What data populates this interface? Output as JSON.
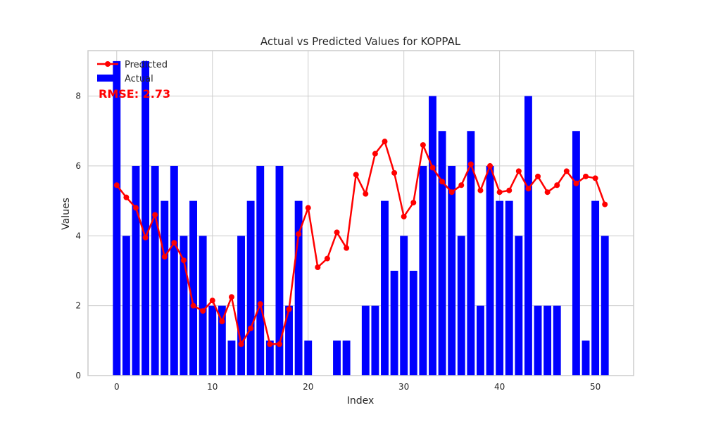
{
  "chart_data": {
    "type": "bar",
    "title": "Actual vs Predicted Values for KOPPAL",
    "xlabel": "Index",
    "ylabel": "Values",
    "xlim": [
      -3,
      54
    ],
    "ylim": [
      0,
      9.3
    ],
    "xticks": [
      0,
      10,
      20,
      30,
      40,
      50
    ],
    "yticks": [
      0,
      2,
      4,
      6,
      8
    ],
    "grid": true,
    "legend_position": "upper-left",
    "annotation": "RMSE: 2.73",
    "x": [
      0,
      1,
      2,
      3,
      4,
      5,
      6,
      7,
      8,
      9,
      10,
      11,
      12,
      13,
      14,
      15,
      16,
      17,
      18,
      19,
      20,
      21,
      22,
      23,
      24,
      25,
      26,
      27,
      28,
      29,
      30,
      31,
      32,
      33,
      34,
      35,
      36,
      37,
      38,
      39,
      40,
      41,
      42,
      43,
      44,
      45,
      46,
      47,
      48,
      49,
      50,
      51
    ],
    "series": [
      {
        "name": "Actual",
        "kind": "bar",
        "color": "#0000ff",
        "values": [
          9,
          4,
          6,
          9,
          6,
          5,
          6,
          4,
          5,
          4,
          2,
          2,
          1,
          4,
          5,
          6,
          1,
          6,
          2,
          5,
          1,
          0,
          0,
          1,
          1,
          0,
          2,
          2,
          5,
          3,
          4,
          3,
          6,
          8,
          7,
          6,
          4,
          7,
          2,
          6,
          5,
          5,
          4,
          8,
          2,
          2,
          2,
          0,
          7,
          1,
          5,
          4
        ]
      },
      {
        "name": "Predicted",
        "kind": "line",
        "color": "#ff0000",
        "values": [
          5.45,
          5.1,
          4.8,
          3.95,
          4.6,
          3.4,
          3.8,
          3.3,
          2.0,
          1.85,
          2.15,
          1.55,
          2.25,
          0.9,
          1.35,
          2.05,
          0.9,
          0.9,
          1.9,
          4.05,
          4.8,
          3.1,
          3.35,
          4.1,
          3.65,
          5.75,
          5.2,
          6.35,
          6.7,
          5.8,
          4.55,
          4.95,
          6.6,
          5.95,
          5.55,
          5.25,
          5.45,
          6.05,
          5.3,
          6.0,
          5.25,
          5.3,
          5.85,
          5.35,
          5.7,
          5.25,
          5.45,
          5.85,
          5.5,
          5.7,
          5.65,
          4.9
        ]
      }
    ]
  },
  "colors": {
    "background": "#ffffff",
    "grid": "#cccccc",
    "axes_edge": "#cccccc",
    "annotation": "#ff0000"
  }
}
